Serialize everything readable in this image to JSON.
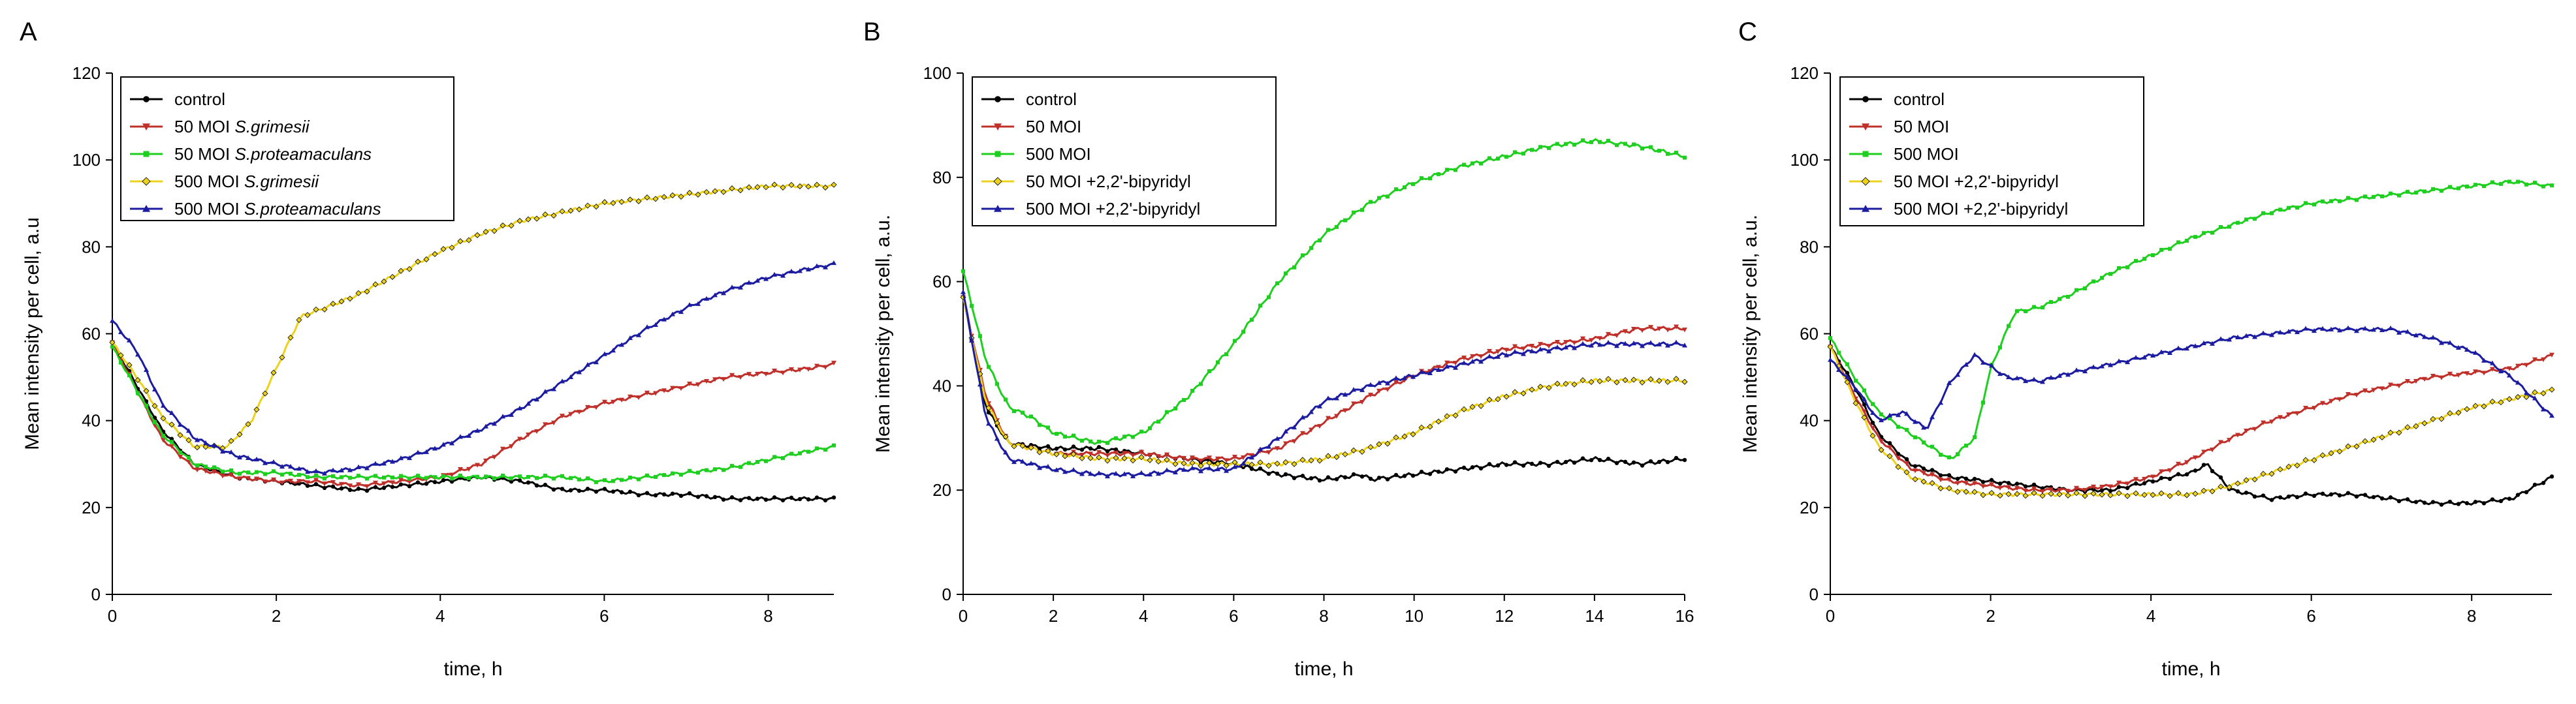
{
  "chart_data": [
    {
      "panel_label": "A",
      "type": "line",
      "xlabel": "time, h",
      "ylabel": "Mean intensity per cell, a.u",
      "xlim": [
        0,
        8.8
      ],
      "ylim": [
        0,
        120
      ],
      "xticks": [
        0,
        2,
        4,
        6,
        8
      ],
      "yticks": [
        0,
        20,
        40,
        60,
        80,
        100,
        120
      ],
      "legend": {
        "position": "top-left",
        "entries": [
          {
            "prefix": "control",
            "species": ""
          },
          {
            "prefix": "50 MOI ",
            "species": "S.grimesii"
          },
          {
            "prefix": "50 MOI ",
            "species": "S.proteamaculans"
          },
          {
            "prefix": "500 MOI ",
            "species": "S.grimesii"
          },
          {
            "prefix": "500 MOI ",
            "species": "S.proteamaculans"
          }
        ]
      },
      "series": [
        {
          "name": "control",
          "color": "#000000",
          "marker": "circle",
          "x": [
            0,
            0.3,
            0.6,
            1,
            1.5,
            2,
            2.5,
            3,
            3.5,
            4,
            4.5,
            5,
            5.5,
            6,
            6.5,
            7,
            7.5,
            8,
            8.5,
            8.8
          ],
          "y": [
            58,
            48,
            38,
            30,
            27,
            26,
            25,
            24,
            25,
            26,
            27,
            26,
            24,
            24,
            23,
            23,
            22,
            22,
            22,
            22
          ]
        },
        {
          "name": "50 MOI S.grimesii",
          "color": "#c0302a",
          "marker": "triangle-down",
          "x": [
            0,
            0.3,
            0.6,
            1,
            1.5,
            2,
            2.5,
            3,
            3.5,
            4,
            4.5,
            5,
            5.5,
            6,
            6.5,
            7,
            7.5,
            8,
            8.5,
            8.8
          ],
          "y": [
            58,
            47,
            36,
            29,
            27,
            26,
            26,
            25,
            26,
            27,
            30,
            36,
            41,
            44,
            46,
            48,
            50,
            51,
            52,
            53
          ]
        },
        {
          "name": "50 MOI S.proteamaculans",
          "color": "#1fcf1f",
          "marker": "square",
          "x": [
            0,
            0.3,
            0.6,
            1,
            1.5,
            2,
            2.5,
            3,
            3.5,
            4,
            4.5,
            5,
            5.5,
            6,
            6.5,
            7,
            7.5,
            8,
            8.5,
            8.8
          ],
          "y": [
            57,
            47,
            37,
            30,
            28,
            28,
            27,
            27,
            27,
            27,
            27,
            27,
            27,
            26,
            27,
            28,
            29,
            31,
            33,
            34
          ]
        },
        {
          "name": "500 MOI S.grimesii",
          "color": "#ecd21a",
          "marker": "diamond",
          "x": [
            0,
            0.3,
            0.6,
            1,
            1.4,
            1.7,
            2,
            2.3,
            2.6,
            3,
            3.5,
            4,
            4.5,
            5,
            5.5,
            6,
            6.5,
            7,
            7.5,
            8,
            8.5,
            8.8
          ],
          "y": [
            58,
            50,
            41,
            34,
            34,
            40,
            52,
            64,
            66,
            69,
            74,
            79,
            83,
            86,
            88,
            90,
            91,
            92,
            93,
            94,
            94,
            94
          ]
        },
        {
          "name": "500 MOI S.proteamaculans",
          "color": "#1c1ca0",
          "marker": "triangle-up",
          "x": [
            0,
            0.3,
            0.6,
            1,
            1.5,
            2,
            2.5,
            3,
            3.5,
            4,
            4.5,
            5,
            5.5,
            6,
            6.5,
            7,
            7.5,
            8,
            8.5,
            8.8
          ],
          "y": [
            63,
            56,
            44,
            36,
            32,
            30,
            28,
            29,
            31,
            34,
            38,
            43,
            49,
            55,
            61,
            66,
            70,
            73,
            75,
            76
          ]
        }
      ]
    },
    {
      "panel_label": "B",
      "type": "line",
      "xlabel": "time, h",
      "ylabel": "Mean intensity per cell, a.u.",
      "xlim": [
        0,
        16
      ],
      "ylim": [
        0,
        100
      ],
      "xticks": [
        0,
        2,
        4,
        6,
        8,
        10,
        12,
        14,
        16
      ],
      "yticks": [
        0,
        20,
        40,
        60,
        80,
        100
      ],
      "legend": {
        "position": "top-left",
        "entries": [
          {
            "prefix": "control",
            "species": ""
          },
          {
            "prefix": "50 MOI",
            "species": ""
          },
          {
            "prefix": "500 MOI",
            "species": ""
          },
          {
            "prefix": "50 MOI +2,2'-bipyridyl",
            "species": ""
          },
          {
            "prefix": "500 MOI +2,2'-bipyridyl",
            "species": ""
          }
        ]
      },
      "series": [
        {
          "name": "control",
          "color": "#000000",
          "marker": "circle",
          "x": [
            0,
            0.5,
            1,
            2,
            3,
            4,
            5,
            6,
            7,
            8,
            8.9,
            9,
            10,
            11,
            12,
            13,
            14,
            15,
            16
          ],
          "y": [
            57,
            36,
            29,
            28,
            28,
            27,
            26,
            25,
            23,
            22,
            23,
            22,
            23,
            24,
            25,
            25,
            26,
            25,
            26
          ]
        },
        {
          "name": "50 MOI",
          "color": "#c0302a",
          "marker": "triangle-down",
          "x": [
            0,
            0.5,
            1,
            2,
            3,
            4,
            5,
            6,
            7,
            8,
            9,
            10,
            11,
            12,
            13,
            14,
            15,
            16
          ],
          "y": [
            57,
            38,
            29,
            27,
            27,
            27,
            26,
            26,
            28,
            33,
            38,
            42,
            45,
            47,
            48,
            49,
            51,
            51
          ]
        },
        {
          "name": "500 MOI",
          "color": "#1fcf1f",
          "marker": "square",
          "x": [
            0,
            0.5,
            1,
            1.5,
            2,
            3,
            4,
            5,
            6,
            7,
            8,
            9,
            10,
            11,
            12,
            13,
            14,
            15,
            16
          ],
          "y": [
            62,
            45,
            36,
            34,
            31,
            29,
            31,
            38,
            48,
            60,
            69,
            75,
            79,
            82,
            84,
            86,
            87,
            86,
            84
          ]
        },
        {
          "name": "50 MOI +2,2'-bipyridyl",
          "color": "#ecd21a",
          "marker": "diamond",
          "x": [
            0,
            0.5,
            1,
            2,
            3,
            4,
            5,
            6,
            7,
            8,
            9,
            10,
            11,
            12,
            13,
            14,
            15,
            16
          ],
          "y": [
            57,
            37,
            29,
            27,
            26,
            26,
            25,
            25,
            25,
            26,
            28,
            31,
            35,
            38,
            40,
            41,
            41,
            41
          ]
        },
        {
          "name": "500 MOI +2,2'-bipyridyl",
          "color": "#1c1ca0",
          "marker": "triangle-up",
          "x": [
            0,
            0.5,
            1,
            2,
            3,
            4,
            5,
            6,
            7,
            8,
            9,
            10,
            11,
            12,
            13,
            14,
            15,
            16
          ],
          "y": [
            58,
            34,
            26,
            24,
            23,
            23,
            24,
            24,
            30,
            37,
            40,
            42,
            44,
            46,
            47,
            48,
            48,
            48
          ]
        }
      ]
    },
    {
      "panel_label": "C",
      "type": "line",
      "xlabel": "time, h",
      "ylabel": "Mean intensity per cell, a.u.",
      "xlim": [
        0,
        9
      ],
      "ylim": [
        0,
        120
      ],
      "xticks": [
        0,
        2,
        4,
        6,
        8
      ],
      "yticks": [
        0,
        20,
        40,
        60,
        80,
        100,
        120
      ],
      "legend": {
        "position": "top-left",
        "entries": [
          {
            "prefix": "control",
            "species": ""
          },
          {
            "prefix": "50 MOI",
            "species": ""
          },
          {
            "prefix": "500 MOI",
            "species": ""
          },
          {
            "prefix": "50 MOI +2,2'-bipyridyl",
            "species": ""
          },
          {
            "prefix": "500 MOI +2,2'-bipyridyl",
            "species": ""
          }
        ]
      },
      "series": [
        {
          "name": "control",
          "color": "#000000",
          "marker": "circle",
          "x": [
            0,
            0.3,
            0.6,
            1,
            1.5,
            2,
            2.5,
            3,
            3.5,
            4,
            4.5,
            4.7,
            5,
            5.5,
            6,
            6.5,
            7,
            7.5,
            8,
            8.5,
            9
          ],
          "y": [
            57,
            48,
            37,
            30,
            27,
            26,
            25,
            24,
            24,
            26,
            28,
            30,
            24,
            22,
            23,
            23,
            22,
            21,
            21,
            22,
            27
          ]
        },
        {
          "name": "50 MOI",
          "color": "#c0302a",
          "marker": "triangle-down",
          "x": [
            0,
            0.3,
            0.6,
            1,
            1.5,
            2,
            2.5,
            3,
            3.5,
            4,
            4.5,
            5,
            5.5,
            6,
            6.5,
            7,
            7.5,
            8,
            8.5,
            9
          ],
          "y": [
            57,
            46,
            36,
            29,
            26,
            25,
            24,
            24,
            25,
            27,
            31,
            36,
            40,
            43,
            46,
            48,
            50,
            51,
            52,
            55
          ]
        },
        {
          "name": "500 MOI",
          "color": "#1fcf1f",
          "marker": "square",
          "x": [
            0,
            0.3,
            0.6,
            1,
            1.5,
            1.8,
            2,
            2.3,
            2.6,
            3,
            3.5,
            4,
            4.5,
            5,
            5.5,
            6,
            6.5,
            7,
            7.5,
            8,
            8.5,
            9
          ],
          "y": [
            59,
            50,
            42,
            37,
            31,
            36,
            52,
            65,
            66,
            69,
            74,
            78,
            82,
            85,
            88,
            90,
            91,
            92,
            93,
            94,
            95,
            94
          ]
        },
        {
          "name": "50 MOI +2,2'-bipyridyl",
          "color": "#ecd21a",
          "marker": "diamond",
          "x": [
            0,
            0.3,
            0.6,
            1,
            1.5,
            2,
            2.5,
            3,
            3.5,
            4,
            4.5,
            5,
            5.5,
            6,
            6.5,
            7,
            7.5,
            8,
            8.5,
            9
          ],
          "y": [
            57,
            45,
            34,
            27,
            24,
            23,
            23,
            23,
            23,
            23,
            23,
            25,
            28,
            31,
            34,
            37,
            40,
            43,
            45,
            47
          ]
        },
        {
          "name": "500 MOI +2,2'-bipyridyl",
          "color": "#1c1ca0",
          "marker": "triangle-up",
          "x": [
            0,
            0.3,
            0.6,
            0.9,
            1.2,
            1.5,
            1.8,
            2.2,
            2.6,
            3,
            3.5,
            4,
            4.5,
            5,
            5.5,
            6,
            6.5,
            7,
            7.5,
            8,
            8.5,
            9
          ],
          "y": [
            54,
            48,
            40,
            42,
            38,
            49,
            55,
            50,
            49,
            51,
            53,
            55,
            57,
            59,
            60,
            61,
            61,
            61,
            59,
            56,
            50,
            41
          ]
        }
      ]
    }
  ]
}
